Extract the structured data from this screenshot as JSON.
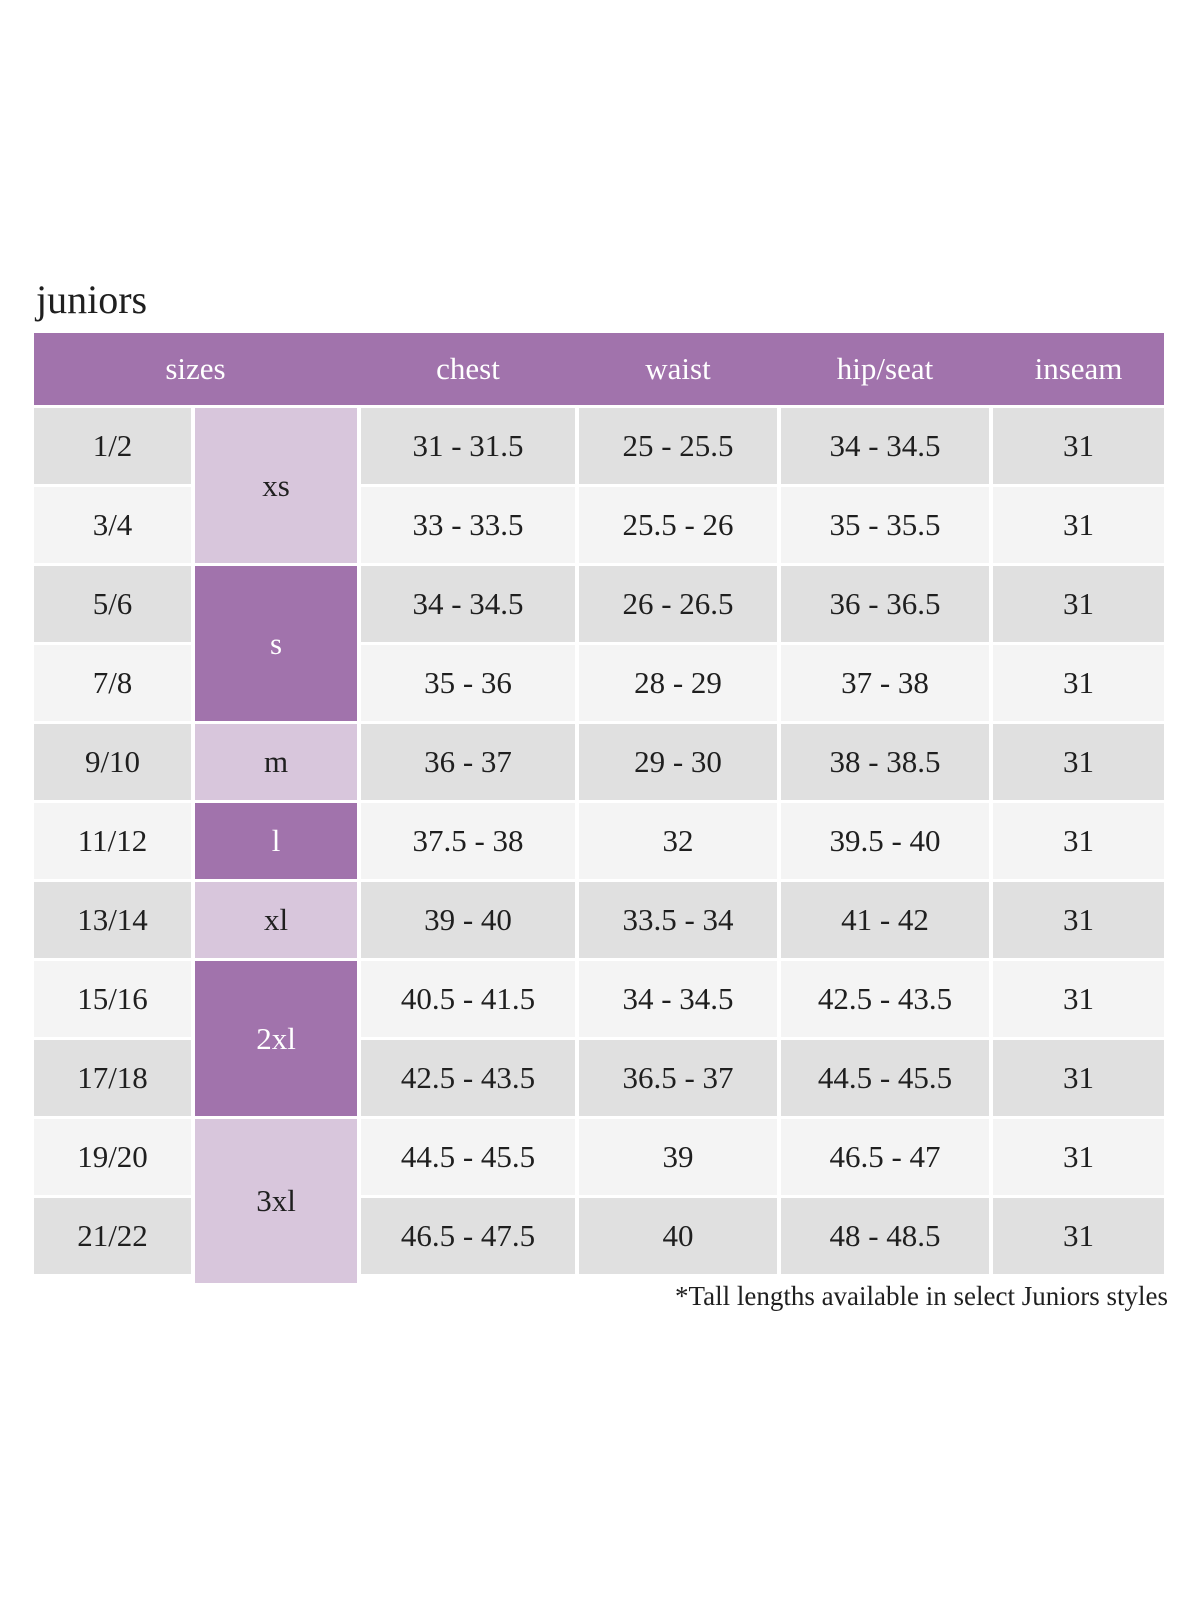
{
  "page": {
    "title": "juniors",
    "footnote": "*Tall lengths available in select Juniors styles"
  },
  "colors": {
    "header_purple": "#a173ac",
    "light_purple": "#d8c6dc",
    "row_gray": "#e0e0e0",
    "row_light": "#f4f4f4",
    "text_dark": "#1f1f1f"
  },
  "table": {
    "headers": {
      "sizes": "sizes",
      "chest": "chest",
      "waist": "waist",
      "hip_seat": "hip/seat",
      "inseam": "inseam"
    },
    "size_groups": [
      {
        "label": "xs",
        "tone": "light-purple",
        "spans_rows": "1/2 and 3/4"
      },
      {
        "label": "s",
        "tone": "dark-purple",
        "spans_rows": "5/6 and 7/8"
      },
      {
        "label": "m",
        "tone": "light-purple",
        "spans_rows": "9/10"
      },
      {
        "label": "l",
        "tone": "dark-purple",
        "spans_rows": "11/12"
      },
      {
        "label": "xl",
        "tone": "light-purple",
        "spans_rows": "13/14"
      },
      {
        "label": "2xl",
        "tone": "dark-purple",
        "spans_rows": "15/16 and 17/18"
      },
      {
        "label": "3xl",
        "tone": "light-purple",
        "spans_rows": "19/20 and 21/22"
      }
    ],
    "rows": [
      {
        "size": "1/2",
        "chest": "31 - 31.5",
        "waist": "25 - 25.5",
        "hip_seat": "34 - 34.5",
        "inseam": "31"
      },
      {
        "size": "3/4",
        "chest": "33 - 33.5",
        "waist": "25.5 - 26",
        "hip_seat": "35 - 35.5",
        "inseam": "31"
      },
      {
        "size": "5/6",
        "chest": "34 - 34.5",
        "waist": "26 - 26.5",
        "hip_seat": "36 - 36.5",
        "inseam": "31"
      },
      {
        "size": "7/8",
        "chest": "35 - 36",
        "waist": "28 - 29",
        "hip_seat": "37 - 38",
        "inseam": "31"
      },
      {
        "size": "9/10",
        "chest": "36 - 37",
        "waist": "29 - 30",
        "hip_seat": "38 - 38.5",
        "inseam": "31"
      },
      {
        "size": "11/12",
        "chest": "37.5 - 38",
        "waist": "32",
        "hip_seat": "39.5 - 40",
        "inseam": "31"
      },
      {
        "size": "13/14",
        "chest": "39 - 40",
        "waist": "33.5 - 34",
        "hip_seat": "41 - 42",
        "inseam": "31"
      },
      {
        "size": "15/16",
        "chest": "40.5 - 41.5",
        "waist": "34 - 34.5",
        "hip_seat": "42.5 - 43.5",
        "inseam": "31"
      },
      {
        "size": "17/18",
        "chest": "42.5 - 43.5",
        "waist": "36.5 - 37",
        "hip_seat": "44.5 - 45.5",
        "inseam": "31"
      },
      {
        "size": "19/20",
        "chest": "44.5 - 45.5",
        "waist": "39",
        "hip_seat": "46.5 - 47",
        "inseam": "31"
      },
      {
        "size": "21/22",
        "chest": "46.5 - 47.5",
        "waist": "40",
        "hip_seat": "48 - 48.5",
        "inseam": "31"
      }
    ]
  }
}
